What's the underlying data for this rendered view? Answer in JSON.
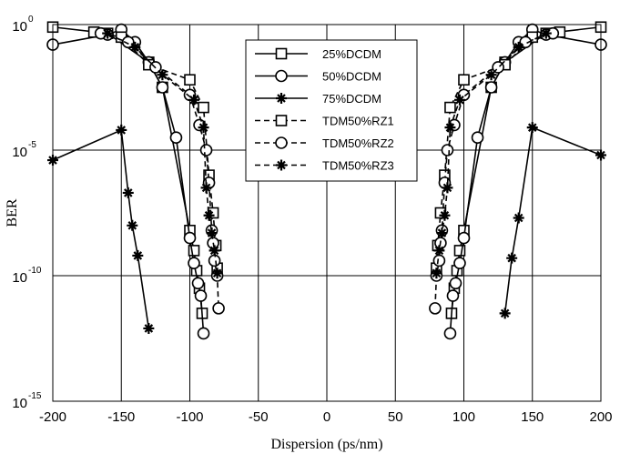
{
  "chart_data": {
    "type": "line",
    "xlabel": "Dispersion (ps/nm)",
    "ylabel": "BER",
    "xlim": [
      -200,
      200
    ],
    "ylim_exponent": [
      -15,
      0
    ],
    "y_scale": "log",
    "grid": true,
    "legend_position": "top-center",
    "x_ticks": [
      "-200",
      "-150",
      "-100",
      "-50",
      "0",
      "50",
      "100",
      "150",
      "200"
    ],
    "y_ticks": [
      {
        "base": "10",
        "exp": "0",
        "value": 0
      },
      {
        "base": "10",
        "exp": "-5",
        "value": -5
      },
      {
        "base": "10",
        "exp": "-10",
        "value": -10
      },
      {
        "base": "10",
        "exp": "-15",
        "value": -15
      }
    ],
    "series": [
      {
        "name": "25%DCDM",
        "marker": "square",
        "dash": "solid",
        "points": [
          [
            -200,
            -0.1
          ],
          [
            -160,
            -0.35
          ],
          [
            -130,
            -1.5
          ],
          [
            -120,
            -2.5
          ],
          [
            -100,
            -8.2
          ],
          [
            -97,
            -9
          ],
          [
            -95,
            -9.8
          ],
          [
            -93,
            -10.5
          ],
          [
            -91,
            -11.5
          ],
          [
            91,
            -11.5
          ],
          [
            93,
            -10.5
          ],
          [
            95,
            -9.8
          ],
          [
            97,
            -9
          ],
          [
            100,
            -8.2
          ],
          [
            120,
            -2.5
          ],
          [
            130,
            -1.5
          ],
          [
            160,
            -0.35
          ],
          [
            200,
            -0.1
          ]
        ]
      },
      {
        "name": "50%DCDM",
        "marker": "circle",
        "dash": "solid",
        "points": [
          [
            -200,
            -0.8
          ],
          [
            -160,
            -0.4
          ],
          [
            -150,
            -0.2
          ],
          [
            -140,
            -0.7
          ],
          [
            -130,
            -1.5
          ],
          [
            -120,
            -2.5
          ],
          [
            -110,
            -4.5
          ],
          [
            -100,
            -8.5
          ],
          [
            -97,
            -9.5
          ],
          [
            -94,
            -10.3
          ],
          [
            -92,
            -10.8
          ],
          [
            -90,
            -12.3
          ],
          [
            90,
            -12.3
          ],
          [
            92,
            -10.8
          ],
          [
            94,
            -10.3
          ],
          [
            97,
            -9.5
          ],
          [
            100,
            -8.5
          ],
          [
            110,
            -4.5
          ],
          [
            120,
            -2.5
          ],
          [
            130,
            -1.5
          ],
          [
            140,
            -0.7
          ],
          [
            150,
            -0.2
          ],
          [
            160,
            -0.4
          ],
          [
            200,
            -0.8
          ]
        ]
      },
      {
        "name": "75%DCDM",
        "marker": "star",
        "dash": "solid",
        "points": [
          [
            -200,
            -5.4
          ],
          [
            -150,
            -4.2
          ],
          [
            -145,
            -6.7
          ],
          [
            -142,
            -8.0
          ],
          [
            -138,
            -9.2
          ],
          [
            -130,
            -12.1
          ],
          [
            130,
            -11.5
          ],
          [
            135,
            -9.3
          ],
          [
            140,
            -7.7
          ],
          [
            150,
            -4.1
          ],
          [
            200,
            -5.2
          ]
        ]
      },
      {
        "name": "TDM50%RZ1",
        "marker": "square",
        "dash": "dashed",
        "points": [
          [
            -170,
            -0.3
          ],
          [
            -150,
            -0.5
          ],
          [
            -130,
            -1.6
          ],
          [
            -100,
            -2.2
          ],
          [
            -90,
            -3.3
          ],
          [
            -86,
            -6.0
          ],
          [
            -83,
            -7.5
          ],
          [
            -81,
            -8.8
          ],
          [
            -80,
            -9.7
          ],
          [
            80,
            -9.7
          ],
          [
            81,
            -8.8
          ],
          [
            83,
            -7.5
          ],
          [
            86,
            -6.0
          ],
          [
            90,
            -3.3
          ],
          [
            100,
            -2.2
          ],
          [
            130,
            -1.6
          ],
          [
            150,
            -0.5
          ],
          [
            170,
            -0.3
          ]
        ]
      },
      {
        "name": "TDM50%RZ2",
        "marker": "circle",
        "dash": "dashed",
        "points": [
          [
            -165,
            -0.35
          ],
          [
            -145,
            -0.7
          ],
          [
            -125,
            -1.7
          ],
          [
            -100,
            -2.8
          ],
          [
            -93,
            -4
          ],
          [
            -88,
            -5
          ],
          [
            -86,
            -6.3
          ],
          [
            -84,
            -8.2
          ],
          [
            -83,
            -8.7
          ],
          [
            -82,
            -9.4
          ],
          [
            -80,
            -10
          ],
          [
            -79,
            -11.3
          ],
          [
            79,
            -11.3
          ],
          [
            80,
            -10
          ],
          [
            82,
            -9.4
          ],
          [
            83,
            -8.7
          ],
          [
            84,
            -8.2
          ],
          [
            86,
            -6.3
          ],
          [
            88,
            -5
          ],
          [
            93,
            -4
          ],
          [
            100,
            -2.8
          ],
          [
            125,
            -1.7
          ],
          [
            145,
            -0.7
          ],
          [
            165,
            -0.35
          ]
        ]
      },
      {
        "name": "TDM50%RZ3",
        "marker": "star",
        "dash": "dashed",
        "points": [
          [
            -160,
            -0.35
          ],
          [
            -140,
            -0.9
          ],
          [
            -120,
            -2.0
          ],
          [
            -97,
            -3.0
          ],
          [
            -90,
            -4.1
          ],
          [
            -88,
            -6.5
          ],
          [
            -86,
            -7.6
          ],
          [
            -84,
            -8.3
          ],
          [
            -82,
            -9.0
          ],
          [
            -80,
            -9.9
          ],
          [
            80,
            -9.9
          ],
          [
            82,
            -9.0
          ],
          [
            84,
            -8.3
          ],
          [
            86,
            -7.6
          ],
          [
            88,
            -6.5
          ],
          [
            90,
            -4.1
          ],
          [
            97,
            -3.0
          ],
          [
            120,
            -2.0
          ],
          [
            140,
            -0.9
          ],
          [
            160,
            -0.35
          ]
        ]
      }
    ]
  }
}
